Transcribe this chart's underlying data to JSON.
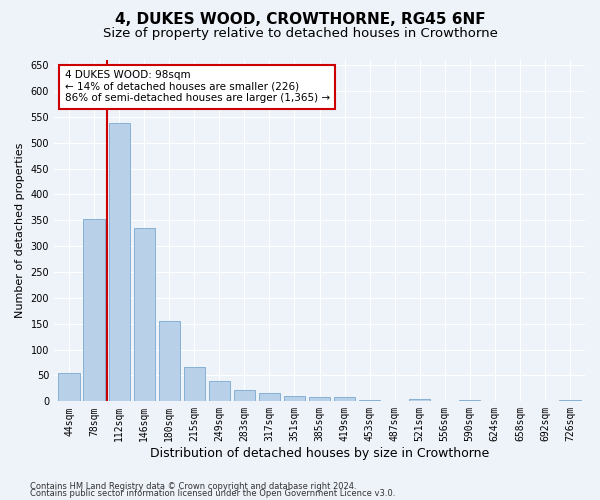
{
  "title": "4, DUKES WOOD, CROWTHORNE, RG45 6NF",
  "subtitle": "Size of property relative to detached houses in Crowthorne",
  "xlabel": "Distribution of detached houses by size in Crowthorne",
  "ylabel": "Number of detached properties",
  "categories": [
    "44sqm",
    "78sqm",
    "112sqm",
    "146sqm",
    "180sqm",
    "215sqm",
    "249sqm",
    "283sqm",
    "317sqm",
    "351sqm",
    "385sqm",
    "419sqm",
    "453sqm",
    "487sqm",
    "521sqm",
    "556sqm",
    "590sqm",
    "624sqm",
    "658sqm",
    "692sqm",
    "726sqm"
  ],
  "values": [
    55,
    353,
    538,
    335,
    155,
    67,
    40,
    22,
    17,
    10,
    8,
    8,
    2,
    0,
    4,
    0,
    2,
    0,
    0,
    0,
    3
  ],
  "bar_color": "#b8d0e8",
  "bar_edge_color": "#7aaad0",
  "property_line_color": "#cc0000",
  "annotation_text": "4 DUKES WOOD: 98sqm\n← 14% of detached houses are smaller (226)\n86% of semi-detached houses are larger (1,365) →",
  "annotation_box_color": "#ffffff",
  "annotation_box_edge_color": "#cc0000",
  "ylim": [
    0,
    660
  ],
  "yticks": [
    0,
    50,
    100,
    150,
    200,
    250,
    300,
    350,
    400,
    450,
    500,
    550,
    600,
    650
  ],
  "footer1": "Contains HM Land Registry data © Crown copyright and database right 2024.",
  "footer2": "Contains public sector information licensed under the Open Government Licence v3.0.",
  "bg_color": "#eef2f9",
  "plot_bg_color": "#eef2f9",
  "title_fontsize": 11,
  "subtitle_fontsize": 9.5,
  "tick_fontsize": 7,
  "xlabel_fontsize": 9,
  "ylabel_fontsize": 8,
  "footer_fontsize": 6,
  "annotation_fontsize": 7.5
}
